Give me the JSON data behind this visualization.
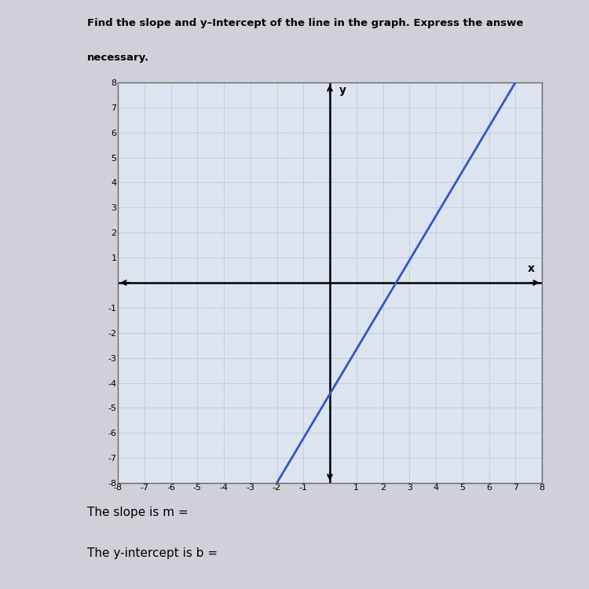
{
  "x_min": -8,
  "x_max": 8,
  "y_min": -8,
  "y_max": 8,
  "line_x": [
    -2.0,
    7.0
  ],
  "line_y": [
    -8.0,
    8.0
  ],
  "line_color": "#3355cc",
  "line_width": 2.0,
  "grid_color": "#b0bfd0",
  "grid_minor_color": "#d0d8e8",
  "axis_color": "#000000",
  "slope_label": "The slope is m =",
  "intercept_label": "The y-intercept is b =",
  "outer_bg": "#d0d0d8",
  "inner_bg": "#f0f0f0",
  "plot_bg": "#dce4f0",
  "tick_fontsize": 8,
  "label_fontsize": 11,
  "title_line1": "Find the slope and y–Intercept of the line in the graph. Express the answe",
  "title_line2": "necessary."
}
